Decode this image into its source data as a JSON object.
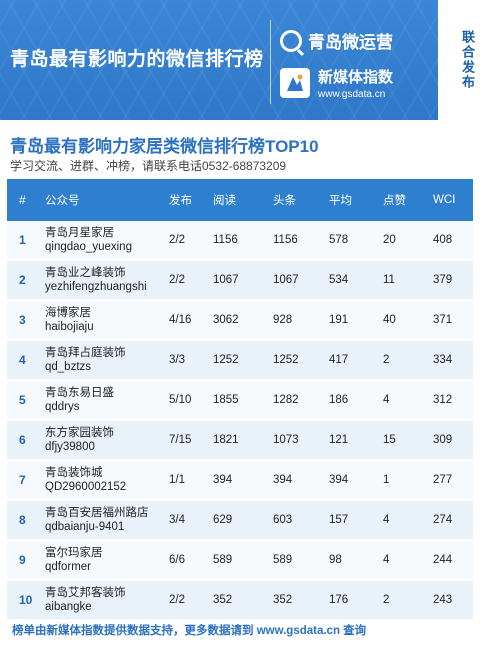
{
  "banner": {
    "title": "青岛最有影响力的微信排行榜",
    "brand1": "青岛微运营",
    "brand2": "新媒体指数",
    "brand2_url": "www.gsdata.cn",
    "side_tag": "联合发布"
  },
  "headline": "青岛最有影响力家居类微信排行榜TOP10",
  "subline": "学习交流、进群、冲榜，请联系电话0532-68873209",
  "table": {
    "headers": [
      "#",
      "公众号",
      "发布",
      "阅读",
      "头条",
      "平均",
      "点赞",
      "WCI"
    ],
    "rows": [
      {
        "rank": "1",
        "name": "青岛月星家居",
        "id": "qingdao_yuexing",
        "pub": "2/2",
        "read": "1156",
        "head": "1156",
        "avg": "578",
        "like": "20",
        "wci": "408"
      },
      {
        "rank": "2",
        "name": "青岛业之峰装饰",
        "id": "yezhifengzhuangshi",
        "pub": "2/2",
        "read": "1067",
        "head": "1067",
        "avg": "534",
        "like": "11",
        "wci": "379"
      },
      {
        "rank": "3",
        "name": "海博家居",
        "id": "haibojiaju",
        "pub": "4/16",
        "read": "3062",
        "head": "928",
        "avg": "191",
        "like": "40",
        "wci": "371"
      },
      {
        "rank": "4",
        "name": "青岛拜占庭装饰",
        "id": "qd_bztzs",
        "pub": "3/3",
        "read": "1252",
        "head": "1252",
        "avg": "417",
        "like": "2",
        "wci": "334"
      },
      {
        "rank": "5",
        "name": "青岛东易日盛",
        "id": "qddrys",
        "pub": "5/10",
        "read": "1855",
        "head": "1282",
        "avg": "186",
        "like": "4",
        "wci": "312"
      },
      {
        "rank": "6",
        "name": "东方家园装饰",
        "id": "dfjy39800",
        "pub": "7/15",
        "read": "1821",
        "head": "1073",
        "avg": "121",
        "like": "15",
        "wci": "309"
      },
      {
        "rank": "7",
        "name": "青岛装饰城",
        "id": "QD2960002152",
        "pub": "1/1",
        "read": "394",
        "head": "394",
        "avg": "394",
        "like": "1",
        "wci": "277"
      },
      {
        "rank": "8",
        "name": "青岛百安居福州路店",
        "id": "qdbaianju-9401",
        "pub": "3/4",
        "read": "629",
        "head": "603",
        "avg": "157",
        "like": "4",
        "wci": "274"
      },
      {
        "rank": "9",
        "name": "富尔玛家居",
        "id": "qdformer",
        "pub": "6/6",
        "read": "589",
        "head": "589",
        "avg": "98",
        "like": "4",
        "wci": "244"
      },
      {
        "rank": "10",
        "name": "青岛艾邦客装饰",
        "id": "aibangke",
        "pub": "2/2",
        "read": "352",
        "head": "352",
        "avg": "176",
        "like": "2",
        "wci": "243"
      }
    ]
  },
  "footer": "榜单由新媒体指数提供数据支持，更多数据请到 www.gsdata.cn 查询"
}
